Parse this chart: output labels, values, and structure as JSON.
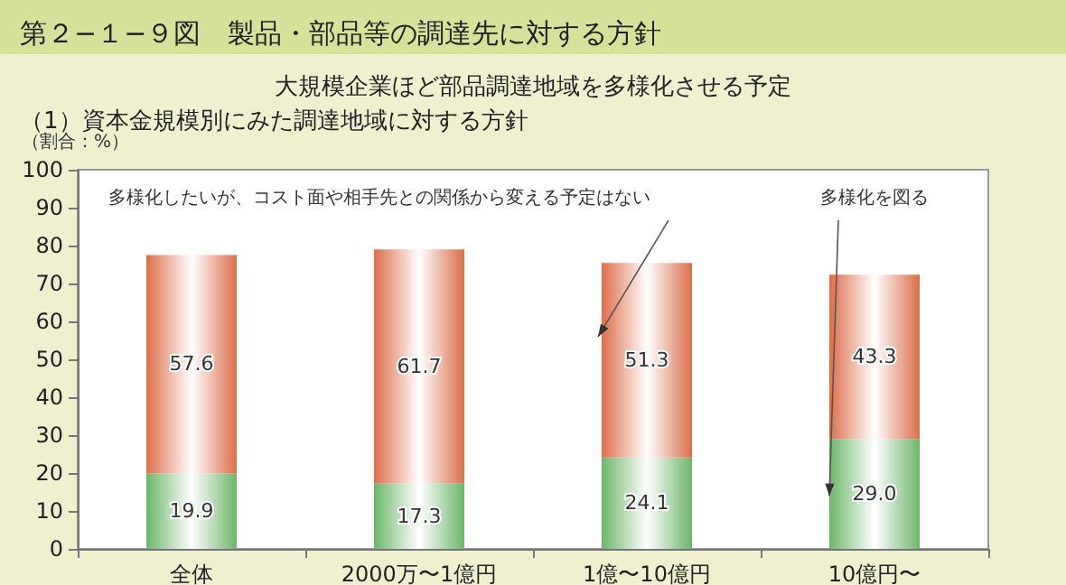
{
  "chart_data": {
    "type": "bar",
    "title": "第２−１−９図　製品・部品等の調達先に対する方針",
    "subtitle": "大規模企業ほど部品調達地域を多様化させる予定",
    "ylabel": "（割合：%）",
    "categories": [
      "全体",
      "2000万〜1億円",
      "1億〜10億円",
      "10億円〜"
    ],
    "stacked": true,
    "series": [
      {
        "name": "多様化を図る",
        "color": "#6cb66a",
        "values": [
          19.9,
          17.3,
          24.1,
          29.0
        ],
        "value_labels": [
          "19.9",
          "17.3",
          "24.1",
          "29.0"
        ]
      },
      {
        "name": "多様化したいが、コスト面や相手先との関係から変える予定はない",
        "color": "#dc6e4a",
        "values": [
          57.6,
          61.7,
          51.3,
          43.3
        ],
        "value_labels": [
          "57.6",
          "61.7",
          "51.3",
          "43.3"
        ]
      }
    ],
    "ylim": [
      0,
      100
    ],
    "yticks": [
      0,
      10,
      20,
      30,
      40,
      50,
      60,
      70,
      80,
      90,
      100
    ],
    "grid": false,
    "annotations": [
      "（1）資本金規模別にみた調達地域に対する方針"
    ]
  }
}
